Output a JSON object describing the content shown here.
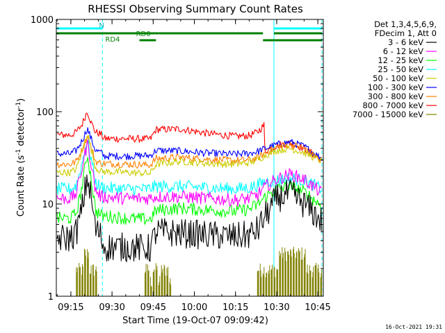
{
  "chart_data": {
    "type": "line",
    "title": "RHESSI Observing Summary Count Rates",
    "xlabel": "Start Time (19-Oct-07 09:09:42)",
    "ylabel_main": "Count Rate (s",
    "ylabel_sup1": "-1",
    "ylabel_mid": " detector",
    "ylabel_sup2": "-1",
    "ylabel_end": ")",
    "y_scale": "log",
    "ylim": [
      1,
      1000
    ],
    "xlim": [
      "09:09:42",
      "10:47:00"
    ],
    "x_ticks": [
      "09:15",
      "09:30",
      "09:45",
      "10:00",
      "10:15",
      "10:30",
      "10:45"
    ],
    "y_ticks": [
      "1",
      "10",
      "100",
      "1000"
    ],
    "legend_position": "top-right",
    "legend_header": [
      "Det 1,3,4,5,6,9,",
      "FDecim 1, Att 0"
    ],
    "night_lines": [
      "09:09:42",
      "09:26:30",
      "10:29:00",
      "10:46:30"
    ],
    "night_dashed": [
      "09:26:30",
      "10:46:30"
    ],
    "state_bars": [
      {
        "label": "N",
        "color": "#00ffff",
        "row": 1,
        "segments": [
          [
            "09:09:42",
            "09:26:30"
          ],
          [
            "10:29:00",
            "10:46:30"
          ]
        ]
      },
      {
        "label": "RD0",
        "color": "#008000",
        "row": 2,
        "segments": [
          [
            "09:09:42",
            "09:47:00"
          ],
          [
            "09:47:00",
            "10:25:00"
          ],
          [
            "10:29:00",
            "10:46:30"
          ]
        ]
      },
      {
        "label": "RD4",
        "color": "#008000",
        "row": 3,
        "segments": [
          [
            "09:40:00",
            "09:46:00"
          ],
          [
            "10:25:00",
            "10:46:30"
          ]
        ]
      }
    ],
    "series": [
      {
        "name": "3 - 6 keV",
        "color": "#000000",
        "x": [
          "09:09:42",
          "09:15:00",
          "09:17:00",
          "09:19:00",
          "09:21:00",
          "09:22:30",
          "09:24:00",
          "09:26:00",
          "09:27:00",
          "09:35:00",
          "09:43:00",
          "09:44:00",
          "09:46:00",
          "09:55:00",
          "10:05:00",
          "10:15:00",
          "10:20:00",
          "10:23:00",
          "10:26:00",
          "10:30:00",
          "10:35:00",
          "10:40:00",
          "10:46:30"
        ],
        "y": [
          4.2,
          4.3,
          5.0,
          8.5,
          20.0,
          11.0,
          5.3,
          4.5,
          3.4,
          3.4,
          3.3,
          3.3,
          5.0,
          4.8,
          4.6,
          4.4,
          4.6,
          5.2,
          7.5,
          11.5,
          13.0,
          10.0,
          6.5
        ]
      },
      {
        "name": "6 - 12 keV",
        "color": "#ff00ff",
        "x": [
          "09:09:42",
          "09:15:00",
          "09:17:00",
          "09:19:00",
          "09:21:00",
          "09:22:30",
          "09:24:00",
          "09:26:00",
          "09:35:00",
          "09:43:00",
          "09:46:00",
          "09:55:00",
          "10:05:00",
          "10:15:00",
          "10:20:00",
          "10:23:00",
          "10:26:00",
          "10:30:00",
          "10:35:00",
          "10:40:00",
          "10:46:30"
        ],
        "y": [
          11.5,
          11.5,
          13.0,
          24.0,
          46.0,
          27.0,
          14.0,
          12.0,
          11.5,
          11.5,
          12.0,
          12.0,
          11.5,
          11.0,
          11.5,
          12.5,
          15.5,
          18.5,
          21.0,
          18.5,
          13.0
        ]
      },
      {
        "name": "12 - 25 keV",
        "color": "#00ff00",
        "x": [
          "09:09:42",
          "09:15:00",
          "09:17:00",
          "09:19:00",
          "09:21:00",
          "09:22:30",
          "09:24:00",
          "09:26:00",
          "09:35:00",
          "09:43:00",
          "09:44:00",
          "09:46:00",
          "09:55:00",
          "10:05:00",
          "10:15:00",
          "10:20:00",
          "10:23:00",
          "10:26:00",
          "10:30:00",
          "10:35:00",
          "10:40:00",
          "10:46:30"
        ],
        "y": [
          7.0,
          7.0,
          8.0,
          15.0,
          35.0,
          18.0,
          8.5,
          7.5,
          7.0,
          6.8,
          6.8,
          8.5,
          9.0,
          8.6,
          8.3,
          8.8,
          9.8,
          12.0,
          14.5,
          15.5,
          13.5,
          9.5
        ]
      },
      {
        "name": "25 - 50 keV",
        "color": "#00ffff",
        "x": [
          "09:09:42",
          "09:15:00",
          "09:17:00",
          "09:19:00",
          "09:21:00",
          "09:22:30",
          "09:24:00",
          "09:26:00",
          "09:35:00",
          "09:43:00",
          "09:46:00",
          "09:55:00",
          "10:05:00",
          "10:15:00",
          "10:20:00",
          "10:23:00",
          "10:26:00",
          "10:30:00",
          "10:35:00",
          "10:40:00",
          "10:46:30"
        ],
        "y": [
          14.5,
          14.5,
          16.0,
          27.0,
          50.0,
          30.0,
          17.0,
          15.0,
          14.5,
          14.5,
          15.5,
          15.5,
          15.0,
          14.5,
          15.0,
          16.0,
          17.5,
          18.0,
          19.0,
          18.0,
          14.5
        ]
      },
      {
        "name": "50 - 100 keV",
        "color": "#cccc00",
        "x": [
          "09:09:42",
          "09:15:00",
          "09:17:00",
          "09:19:00",
          "09:21:00",
          "09:22:30",
          "09:24:00",
          "09:26:00",
          "09:35:00",
          "09:43:00",
          "09:44:00",
          "09:46:00",
          "09:55:00",
          "10:05:00",
          "10:15:00",
          "10:20:00",
          "10:23:00",
          "10:26:00",
          "10:30:00",
          "10:35:00",
          "10:40:00",
          "10:46:30"
        ],
        "y": [
          22.0,
          22.0,
          24.0,
          36.0,
          60.0,
          38.0,
          25.0,
          22.5,
          22.0,
          21.5,
          21.5,
          27.0,
          29.0,
          27.5,
          27.0,
          28.0,
          30.0,
          34.0,
          38.0,
          40.0,
          36.0,
          29.0
        ]
      },
      {
        "name": "100 - 300 keV",
        "color": "#0000ff",
        "x": [
          "09:09:42",
          "09:15:00",
          "09:17:00",
          "09:19:00",
          "09:21:00",
          "09:22:30",
          "09:24:00",
          "09:26:00",
          "09:27:00",
          "09:35:00",
          "09:43:00",
          "09:44:00",
          "09:46:00",
          "09:55:00",
          "10:05:00",
          "10:15:00",
          "10:20:00",
          "10:23:00",
          "10:26:00",
          "10:30:00",
          "10:35:00",
          "10:40:00",
          "10:46:30"
        ],
        "y": [
          35.0,
          35.0,
          38.0,
          48.0,
          66.0,
          50.0,
          38.0,
          36.0,
          33.0,
          33.0,
          33.5,
          33.5,
          38.0,
          37.5,
          35.5,
          34.5,
          35.5,
          37.0,
          40.0,
          44.0,
          47.0,
          42.0,
          31.0
        ]
      },
      {
        "name": "300 - 800 keV",
        "color": "#ff8000",
        "x": [
          "09:09:42",
          "09:15:00",
          "09:17:00",
          "09:19:00",
          "09:21:00",
          "09:22:30",
          "09:24:00",
          "09:26:00",
          "09:35:00",
          "09:43:00",
          "09:44:00",
          "09:46:00",
          "09:55:00",
          "10:05:00",
          "10:15:00",
          "10:20:00",
          "10:23:00",
          "10:26:00",
          "10:30:00",
          "10:35:00",
          "10:40:00",
          "10:46:30"
        ],
        "y": [
          27.0,
          27.0,
          29.0,
          38.0,
          55.0,
          40.0,
          29.0,
          27.5,
          27.0,
          26.5,
          26.5,
          31.0,
          32.0,
          30.5,
          29.5,
          30.0,
          31.5,
          36.0,
          41.0,
          44.0,
          40.0,
          29.0
        ]
      },
      {
        "name": "800 - 7000 keV",
        "color": "#ff0000",
        "x": [
          "09:09:42",
          "09:15:00",
          "09:17:00",
          "09:19:00",
          "09:21:00",
          "09:22:30",
          "09:24:00",
          "09:26:00",
          "09:27:00",
          "09:35:00",
          "09:43:00",
          "09:44:00",
          "09:46:00",
          "09:55:00",
          "10:05:00",
          "10:15:00",
          "10:20:00",
          "10:23:00",
          "10:25:30",
          "10:25:31",
          "10:30:00",
          "10:35:00",
          "10:40:00",
          "10:46:30"
        ],
        "y": [
          56.0,
          56.0,
          60.0,
          72.0,
          102.0,
          75.0,
          60.0,
          57.0,
          51.0,
          51.0,
          50.5,
          50.5,
          64.0,
          65.0,
          58.0,
          54.0,
          55.0,
          60.0,
          72.0,
          37.0,
          43.0,
          46.0,
          40.0,
          30.0
        ]
      },
      {
        "name": "7000 - 15000 keV",
        "color": "#808000",
        "style": "spikes",
        "x": [
          "09:17:00",
          "09:18:00",
          "09:19:00",
          "09:20:00",
          "09:21:00",
          "09:22:00",
          "09:23:00",
          "09:24:00",
          "09:42:00",
          "09:43:00",
          "09:44:00",
          "09:45:00",
          "09:46:00",
          "09:47:00",
          "09:48:00",
          "09:49:00",
          "09:50:00",
          "09:51:00",
          "10:23:00",
          "10:24:00",
          "10:25:00",
          "10:26:00",
          "10:27:00",
          "10:28:00",
          "10:29:00",
          "10:30:00",
          "10:31:00",
          "10:32:00",
          "10:33:00",
          "10:34:00",
          "10:35:00",
          "10:36:00",
          "10:37:00",
          "10:38:00",
          "10:39:00",
          "10:40:00",
          "10:41:00",
          "10:42:00",
          "10:43:00",
          "10:44:00",
          "10:45:00",
          "10:46:00"
        ],
        "y": [
          2.0,
          2.0,
          2.0,
          3.0,
          3.0,
          2.0,
          2.0,
          2.0,
          2.0,
          2.0,
          1.5,
          2.0,
          2.0,
          1.5,
          2.0,
          2.0,
          2.0,
          1.5,
          2.0,
          2.0,
          2.0,
          2.0,
          2.0,
          2.0,
          2.0,
          2.0,
          3.0,
          3.0,
          3.0,
          3.0,
          3.0,
          3.0,
          3.0,
          3.0,
          3.0,
          3.0,
          2.0,
          2.0,
          2.0,
          2.0,
          2.0,
          2.0
        ]
      }
    ],
    "footer_stamp": "16-Oct-2021 19:31"
  }
}
